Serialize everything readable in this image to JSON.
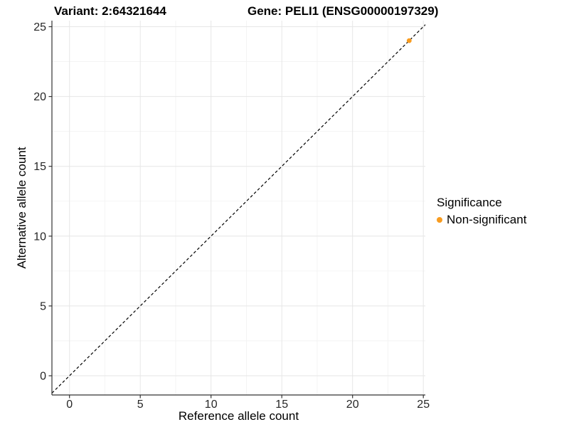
{
  "header": {
    "variant_title": "Variant: 2:64321644",
    "gene_title": "Gene: PELI1 (ENSG00000197329)"
  },
  "axes": {
    "x_label": "Reference allele count",
    "y_label": "Alternative allele count"
  },
  "legend": {
    "title": "Significance",
    "items": [
      {
        "label": "Non-significant",
        "color": "#F89C20"
      }
    ]
  },
  "colors": {
    "point": "#F89C20",
    "axis_line": "#333333",
    "tick_label": "#262626",
    "grid_major": "#E6E6E6",
    "grid_minor": "#F2F2F2",
    "reference_line": "#000000",
    "background": "#FFFFFF"
  },
  "chart_data": {
    "type": "scatter",
    "title": "Variant: 2:64321644 — Gene: PELI1 (ENSG00000197329)",
    "xlabel": "Reference allele count",
    "ylabel": "Alternative allele count",
    "x_ticks": [
      0,
      5,
      10,
      15,
      20,
      25
    ],
    "y_ticks": [
      0,
      5,
      10,
      15,
      20,
      25
    ],
    "xlim": [
      -1.3,
      25.2
    ],
    "ylim": [
      -1.4,
      25.4
    ],
    "grid": "major+minor",
    "legend_position": "right",
    "series": [
      {
        "name": "Non-significant",
        "color": "#F89C20",
        "points": [
          {
            "x": 24,
            "y": 24
          }
        ]
      }
    ],
    "reference_line": {
      "slope": 1,
      "intercept": 0,
      "style": "dashed",
      "color": "#000000"
    }
  }
}
